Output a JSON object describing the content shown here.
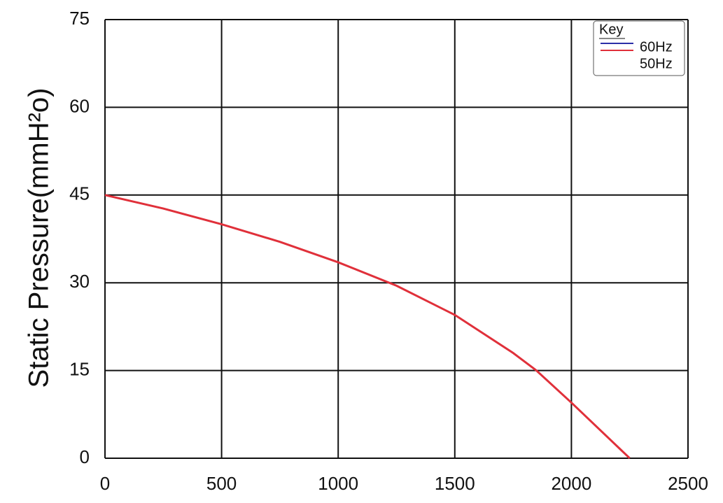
{
  "chart_data": {
    "type": "line",
    "y_label": "Static Pressure(mmH²o)",
    "x": [
      0,
      250,
      500,
      750,
      1000,
      1250,
      1500,
      1750,
      1850,
      2000,
      2250
    ],
    "series": [
      {
        "name": "60Hz",
        "color": "#2b2fa8",
        "values": [
          null,
          null,
          null,
          null,
          null,
          null,
          null,
          null,
          null,
          null,
          null
        ]
      },
      {
        "name": "50Hz",
        "color": "#e0303a",
        "values": [
          45,
          42.7,
          40,
          37,
          33.5,
          29.5,
          24.5,
          18,
          15,
          9.5,
          0
        ]
      }
    ],
    "legend_title": "Key",
    "legend": "upper right",
    "xlim": [
      0,
      2500
    ],
    "xticks": [
      0,
      500,
      1000,
      1500,
      2000,
      2500
    ],
    "ylim": [
      0,
      75
    ],
    "yticks": [
      0,
      15,
      30,
      45,
      60,
      75
    ],
    "grid": true
  }
}
